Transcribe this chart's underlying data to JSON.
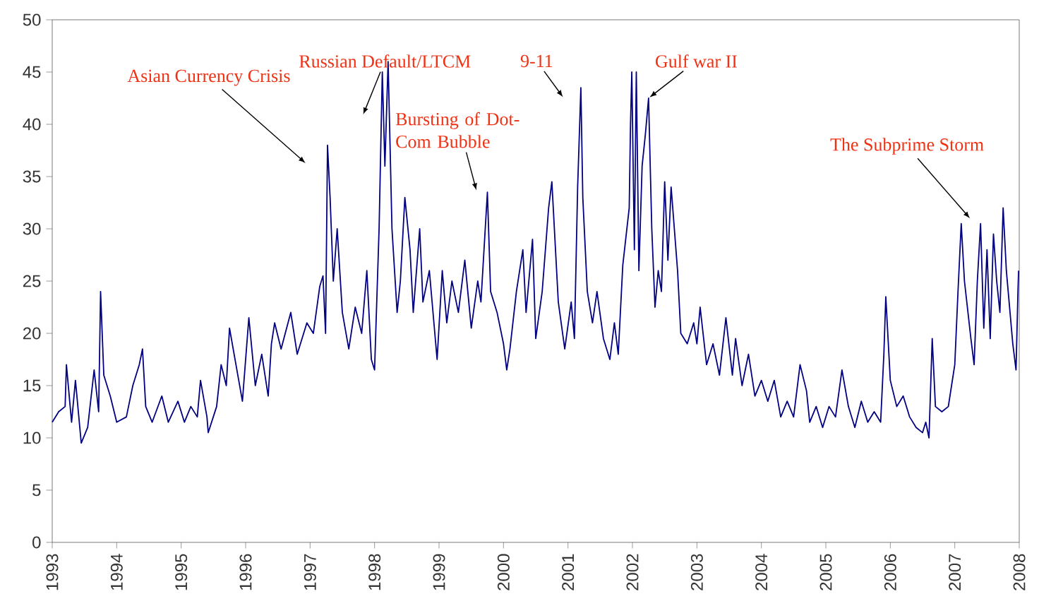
{
  "chart_data": {
    "type": "line",
    "line_style": "solid",
    "xlim": [
      1993,
      2008
    ],
    "ylim": [
      0,
      50
    ],
    "xticks": [
      1993,
      1994,
      1995,
      1996,
      1997,
      1998,
      1999,
      2000,
      2001,
      2002,
      2003,
      2004,
      2005,
      2006,
      2007,
      2008
    ],
    "yticks": [
      0,
      5,
      10,
      15,
      20,
      25,
      30,
      35,
      40,
      45,
      50
    ],
    "series": [
      {
        "color": "#000080",
        "x": [
          1993.0,
          1993.1,
          1993.2,
          1993.22,
          1993.3,
          1993.36,
          1993.45,
          1993.55,
          1993.65,
          1993.72,
          1993.75,
          1993.8,
          1993.9,
          1994.0,
          1994.15,
          1994.25,
          1994.35,
          1994.4,
          1994.45,
          1994.55,
          1994.7,
          1994.8,
          1994.95,
          1995.05,
          1995.15,
          1995.25,
          1995.3,
          1995.4,
          1995.42,
          1995.55,
          1995.62,
          1995.7,
          1995.75,
          1995.85,
          1995.95,
          1996.05,
          1996.15,
          1996.25,
          1996.35,
          1996.4,
          1996.45,
          1996.55,
          1996.7,
          1996.8,
          1996.95,
          1997.05,
          1997.15,
          1997.2,
          1997.24,
          1997.27,
          1997.31,
          1997.36,
          1997.42,
          1997.5,
          1997.6,
          1997.7,
          1997.8,
          1997.88,
          1997.95,
          1998.0,
          1998.07,
          1998.12,
          1998.16,
          1998.21,
          1998.27,
          1998.35,
          1998.4,
          1998.47,
          1998.55,
          1998.6,
          1998.7,
          1998.75,
          1998.85,
          1998.97,
          1999.05,
          1999.12,
          1999.2,
          1999.3,
          1999.4,
          1999.5,
          1999.6,
          1999.65,
          1999.75,
          1999.8,
          1999.9,
          2000.0,
          2000.05,
          2000.1,
          2000.2,
          2000.3,
          2000.35,
          2000.45,
          2000.5,
          2000.6,
          2000.7,
          2000.75,
          2000.85,
          2000.95,
          2001.05,
          2001.1,
          2001.15,
          2001.2,
          2001.23,
          2001.3,
          2001.38,
          2001.45,
          2001.55,
          2001.65,
          2001.72,
          2001.78,
          2001.85,
          2001.95,
          2001.97,
          2001.99,
          2002.03,
          2002.06,
          2002.1,
          2002.15,
          2002.2,
          2002.25,
          2002.3,
          2002.35,
          2002.4,
          2002.45,
          2002.5,
          2002.55,
          2002.6,
          2002.7,
          2002.75,
          2002.85,
          2002.95,
          2003.0,
          2003.05,
          2003.15,
          2003.25,
          2003.35,
          2003.45,
          2003.55,
          2003.6,
          2003.7,
          2003.8,
          2003.9,
          2004.0,
          2004.1,
          2004.2,
          2004.3,
          2004.4,
          2004.5,
          2004.6,
          2004.7,
          2004.75,
          2004.85,
          2004.95,
          2005.05,
          2005.15,
          2005.25,
          2005.35,
          2005.45,
          2005.55,
          2005.65,
          2005.75,
          2005.85,
          2005.9,
          2005.93,
          2006.0,
          2006.1,
          2006.2,
          2006.3,
          2006.4,
          2006.5,
          2006.55,
          2006.6,
          2006.65,
          2006.7,
          2006.8,
          2006.9,
          2006.95,
          2007.0,
          2007.05,
          2007.1,
          2007.15,
          2007.25,
          2007.3,
          2007.35,
          2007.4,
          2007.45,
          2007.5,
          2007.55,
          2007.6,
          2007.65,
          2007.7,
          2007.75,
          2007.8,
          2007.9,
          2007.95,
          2007.98,
          2007.99
        ],
        "values": [
          11.5,
          12.5,
          13,
          17,
          11.5,
          15.5,
          9.5,
          11,
          16.5,
          12.5,
          24,
          16,
          14,
          11.5,
          12,
          15,
          17,
          18.5,
          13,
          11.5,
          14,
          11.5,
          13.5,
          11.5,
          13,
          12,
          15.5,
          12,
          10.5,
          13,
          17,
          15,
          20.5,
          17,
          13.5,
          21.5,
          15,
          18,
          14,
          19,
          21,
          18.5,
          22,
          18,
          21,
          20,
          24.5,
          25.5,
          20,
          38,
          33,
          25,
          30,
          22,
          18.5,
          22.5,
          20,
          26,
          17.5,
          16.5,
          30,
          45,
          36,
          46,
          30,
          22,
          25,
          33,
          28,
          22,
          30,
          23,
          26,
          17.5,
          26,
          21,
          25,
          22,
          27,
          20.5,
          25,
          23,
          33.5,
          24,
          22,
          19,
          16.5,
          18.5,
          24,
          28,
          22,
          29,
          19.5,
          24,
          32,
          34.5,
          23,
          18.5,
          23,
          19.5,
          34,
          43.5,
          33,
          24,
          21,
          24,
          19.5,
          17.5,
          21,
          18,
          26.5,
          32,
          40,
          45,
          28,
          45,
          26,
          36,
          39,
          42.5,
          30,
          22.5,
          26,
          24,
          34.5,
          27,
          34,
          26,
          20,
          19,
          21,
          19,
          22.5,
          17,
          19,
          16,
          21.5,
          16,
          19.5,
          15,
          18,
          14,
          15.5,
          13.5,
          15.5,
          12,
          13.5,
          12,
          17,
          14.5,
          11.5,
          13,
          11,
          13,
          12,
          16.5,
          13,
          11,
          13.5,
          11.5,
          12.5,
          11.5,
          18,
          23.5,
          15.5,
          13,
          14,
          12,
          11,
          10.5,
          11.5,
          10,
          19.5,
          13,
          12.5,
          13,
          15,
          17,
          24,
          30.5,
          25,
          19.5,
          17,
          25,
          30.5,
          20.5,
          28,
          19.5,
          29.5,
          25,
          22,
          32,
          26,
          19,
          16.5,
          24,
          26
        ]
      }
    ],
    "annotations": [
      "Asian Currency Crisis",
      "Russian Default/LTCM",
      "Bursting of Dot-Com Bubble",
      "9-11",
      {
        "text": "Gulf war II",
        "x": 2002.25,
        "y": 42.5
      },
      "The Subprime Storm"
    ]
  }
}
